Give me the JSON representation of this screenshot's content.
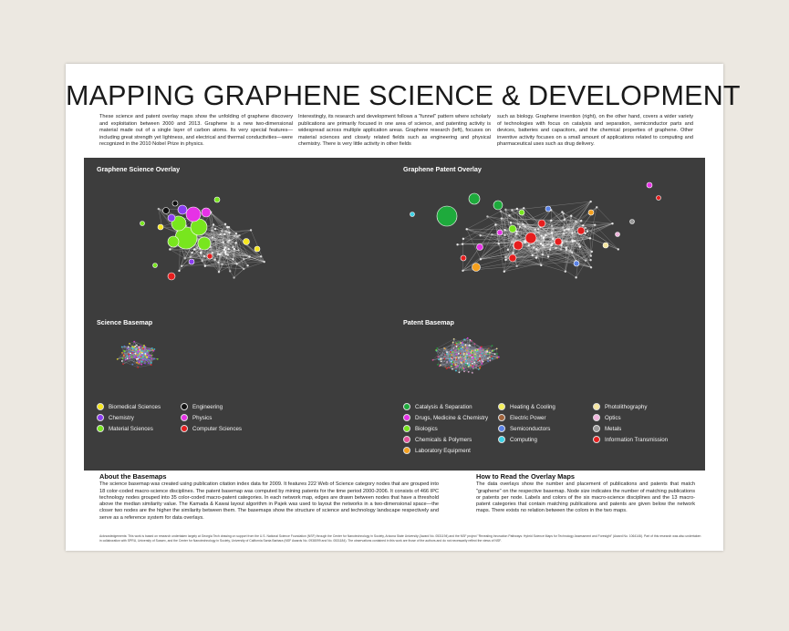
{
  "title": "MAPPING GRAPHENE SCIENCE & DEVELOPMENT",
  "intro": {
    "col1": "These science and patent overlay maps show the unfolding of graphene discovery and exploitation between 2000 and 2013. Graphene is a new two-dimensional material made out of a single layer of carbon atoms. Its very special features—including great strength yet lightness, and electrical and thermal conductivities—were recognized in the 2010 Nobel Prize in physics.",
    "col2": "Interestingly, its research and development follows a \"funnel\" pattern where scholarly publications are primarily focused in one area of science, and patenting activity is widespread across multiple application areas. Graphene research (left), focuses on material sciences and closely related fields such as engineering and physical chemistry. There is very little activity in other fields",
    "col3": "such as biology. Graphene invention (right), on the other hand, covers a wider variety of technologies with focus on catalysis and separation, semiconductor parts and devices, batteries and capacitors, and the chemical properties of graphene. Other inventive activity focuses on a small amount of applications related to computing and pharmaceutical uses such as drug delivery."
  },
  "panels": {
    "science_overlay": "Graphene Science Overlay",
    "patent_overlay": "Graphene Patent Overlay",
    "science_basemap": "Science Basemap",
    "patent_basemap": "Patent Basemap"
  },
  "science_legend": [
    {
      "label": "Biomedical Sciences",
      "color": "#f5e61e"
    },
    {
      "label": "Chemistry",
      "color": "#8a3cf0"
    },
    {
      "label": "Material Sciences",
      "color": "#78e61e"
    },
    {
      "label": "Engineering",
      "color": "#111111"
    },
    {
      "label": "Physics",
      "color": "#e632e6"
    },
    {
      "label": "Computer Sciences",
      "color": "#e61e1e"
    }
  ],
  "patent_legend": [
    {
      "label": "Catalysis & Separation",
      "color": "#1eaa3c"
    },
    {
      "label": "Drugs, Medicine & Chemistry",
      "color": "#e632e6"
    },
    {
      "label": "Biologics",
      "color": "#78e61e"
    },
    {
      "label": "Chemicals & Polymers",
      "color": "#e6509b"
    },
    {
      "label": "Laboratory Equipment",
      "color": "#f5a01e"
    },
    {
      "label": "Heating & Cooling",
      "color": "#f5f05a"
    },
    {
      "label": "Electric Power",
      "color": "#a0643c"
    },
    {
      "label": "Semiconductors",
      "color": "#5a82e6"
    },
    {
      "label": "Computing",
      "color": "#3cd2e6"
    },
    {
      "label": "Photolithography",
      "color": "#f5e6a0"
    },
    {
      "label": "Optics",
      "color": "#f0b4dc"
    },
    {
      "label": "Metals",
      "color": "#9a9a9a"
    },
    {
      "label": "Information Transmission",
      "color": "#e61e1e"
    }
  ],
  "about": {
    "heading": "About the Basemaps",
    "text": "The science basemap was created using publication citation index data for 2009. It features 222 Web of Science category nodes that are grouped into 18 color-coded macro-science disciplines. The patent basemap was computed by mining patents for the time period 2000-2006. It consists of 466 IPC technology nodes grouped into 35 color-coded macro-patent categories. In each network map, edges are drawn between nodes that have a threshold above the median similarity value. The Kamada & Kawai layout algorithm in Pajek was used to layout the networks in a two-dimensional space—the closer two nodes are the higher the similarity between them. The basemaps show the structure of science and technology landscape respectively and serve as a reference system for data overlays."
  },
  "howto": {
    "heading": "How to Read the Overlay Maps",
    "text": "The data overlays show the number and placement of publications and patents that match \"graphene\" on the respective basemap. Node size indicates the number of matching publications or patents per node. Labels and colors of the six macro-science disciplines and the 13 macro-patent categories that contain matching publications and patents are given below the network maps. There exists no relation between the colors in the two maps."
  },
  "ack": "Acknowledgements: This work is based on research undertaken largely at Georgia Tech drawing on support from the U.S. National Science Foundation (NSF) through the Center for Nanotechnology in Society, Arizona State University (Award No. 0531194) and the NSF project \"Revealing Innovation Pathways: Hybrid Science Maps for Technology Assessment and Foresight\" (Award No. 1064146). Part of this research was also undertaken in collaboration with SPRU, University of Sussex, and the Center for Nanotechnology in Society, University of California Santa Barbara (NSF Awards No. 0938099 and No. 0531184). The observations contained in this work are those of the authors and do not necessarily reflect the views of NSF."
}
